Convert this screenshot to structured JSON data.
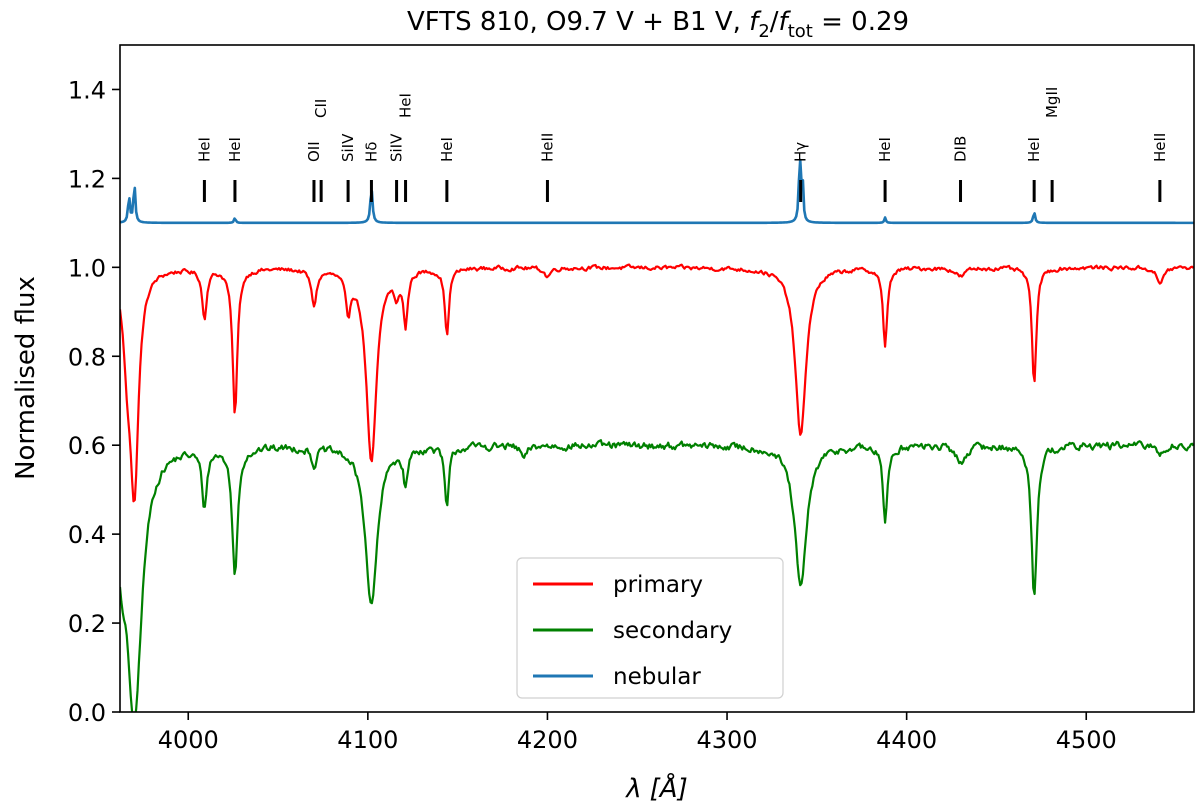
{
  "chart_data": {
    "type": "line",
    "title": {
      "pre": "VFTS 810, O9.7 V  + B1 V, ",
      "f2": "f",
      "f2_sub": "2",
      "slash": "/",
      "ftot": "f",
      "ftot_sub": "tot",
      "post": " = 0.29"
    },
    "xlabel": {
      "lambda": "λ",
      "unit": "[Å]"
    },
    "ylabel": "Normalised flux",
    "xlim": [
      3962,
      4560
    ],
    "ylim": [
      0.0,
      1.5
    ],
    "xticks": [
      4000,
      4100,
      4200,
      4300,
      4400,
      4500
    ],
    "yticks": [
      0.0,
      0.2,
      0.4,
      0.6,
      0.8,
      1.0,
      1.2,
      1.4
    ],
    "xtick_labels": [
      "4000",
      "4100",
      "4200",
      "4300",
      "4400",
      "4500"
    ],
    "ytick_labels": [
      "0.0",
      "0.2",
      "0.4",
      "0.6",
      "0.8",
      "1.0",
      "1.2",
      "1.4"
    ],
    "line_ids": [
      {
        "label": "HeI",
        "x": 4009,
        "level": 0
      },
      {
        "label": "HeI",
        "x": 4026,
        "level": 0
      },
      {
        "label": "OII",
        "x": 4070,
        "level": 0
      },
      {
        "label": "CII",
        "x": 4074,
        "level": 1
      },
      {
        "label": "SiIV",
        "x": 4089,
        "level": 0
      },
      {
        "label": "Hδ",
        "x": 4102,
        "level": 0
      },
      {
        "label": "SiIV",
        "x": 4116,
        "level": 0
      },
      {
        "label": "HeI",
        "x": 4121,
        "level": 1
      },
      {
        "label": "HeI",
        "x": 4144,
        "level": 0
      },
      {
        "label": "HeII",
        "x": 4200,
        "level": 0
      },
      {
        "label": "Hγ",
        "x": 4341,
        "level": 0
      },
      {
        "label": "HeI",
        "x": 4388,
        "level": 0
      },
      {
        "label": "DIB",
        "x": 4430,
        "level": 0
      },
      {
        "label": "HeI",
        "x": 4471,
        "level": 0
      },
      {
        "label": "MgII",
        "x": 4481,
        "level": 1
      },
      {
        "label": "HeII",
        "x": 4541,
        "level": 0
      }
    ],
    "series": [
      {
        "name": "primary",
        "color": "#ff0000",
        "continuum": 1.0,
        "noise": 0.008,
        "lines": [
          {
            "center": 3970,
            "depth": 0.49,
            "width": 2.8
          },
          {
            "center": 3966,
            "depth": 0.15,
            "width": 2.5
          },
          {
            "center": 4009,
            "depth": 0.11,
            "width": 1.5
          },
          {
            "center": 4026,
            "depth": 0.33,
            "width": 1.6
          },
          {
            "center": 4070,
            "depth": 0.08,
            "width": 1.8
          },
          {
            "center": 4089,
            "depth": 0.09,
            "width": 1.5
          },
          {
            "center": 4102,
            "depth": 0.44,
            "width": 3.4
          },
          {
            "center": 4116,
            "depth": 0.05,
            "width": 1.5
          },
          {
            "center": 4121,
            "depth": 0.12,
            "width": 1.4
          },
          {
            "center": 4144,
            "depth": 0.15,
            "width": 1.4
          },
          {
            "center": 4200,
            "depth": 0.02,
            "width": 2.0
          },
          {
            "center": 4341,
            "depth": 0.38,
            "width": 3.6
          },
          {
            "center": 4388,
            "depth": 0.18,
            "width": 1.4
          },
          {
            "center": 4430,
            "depth": 0.02,
            "width": 3.0
          },
          {
            "center": 4471,
            "depth": 0.26,
            "width": 1.5
          },
          {
            "center": 4541,
            "depth": 0.04,
            "width": 2.0
          }
        ]
      },
      {
        "name": "secondary",
        "color": "#008000",
        "continuum": 0.6,
        "noise": 0.014,
        "lines": [
          {
            "center": 3970,
            "depth": 0.6,
            "width": 5.0
          },
          {
            "center": 3963,
            "depth": 0.16,
            "width": 3.0
          },
          {
            "center": 4009,
            "depth": 0.13,
            "width": 1.6
          },
          {
            "center": 4026,
            "depth": 0.29,
            "width": 1.8
          },
          {
            "center": 4070,
            "depth": 0.04,
            "width": 1.5
          },
          {
            "center": 4102,
            "depth": 0.36,
            "width": 4.0
          },
          {
            "center": 4121,
            "depth": 0.08,
            "width": 1.4
          },
          {
            "center": 4144,
            "depth": 0.14,
            "width": 1.4
          },
          {
            "center": 4187,
            "depth": 0.03,
            "width": 2.0
          },
          {
            "center": 4341,
            "depth": 0.32,
            "width": 4.0
          },
          {
            "center": 4388,
            "depth": 0.17,
            "width": 1.5
          },
          {
            "center": 4430,
            "depth": 0.04,
            "width": 3.0
          },
          {
            "center": 4471,
            "depth": 0.34,
            "width": 1.8
          },
          {
            "center": 4541,
            "depth": 0.02,
            "width": 2.0
          }
        ]
      },
      {
        "name": "nebular",
        "color": "#1f77b4",
        "continuum": 1.1,
        "noise": 0.0,
        "lines": [
          {
            "center": 3967,
            "depth": -0.06,
            "width": 0.6
          },
          {
            "center": 3970,
            "depth": -0.09,
            "width": 0.6
          },
          {
            "center": 4026,
            "depth": -0.012,
            "width": 0.5
          },
          {
            "center": 4102,
            "depth": -0.08,
            "width": 0.7
          },
          {
            "center": 4340.5,
            "depth": -0.15,
            "width": 0.6
          },
          {
            "center": 4342,
            "depth": -0.1,
            "width": 0.5
          },
          {
            "center": 4388,
            "depth": -0.012,
            "width": 0.5
          },
          {
            "center": 4471,
            "depth": -0.025,
            "width": 0.6
          }
        ]
      }
    ],
    "legend": {
      "placement": "lower-center",
      "entries": [
        "primary",
        "secondary",
        "nebular"
      ]
    }
  }
}
